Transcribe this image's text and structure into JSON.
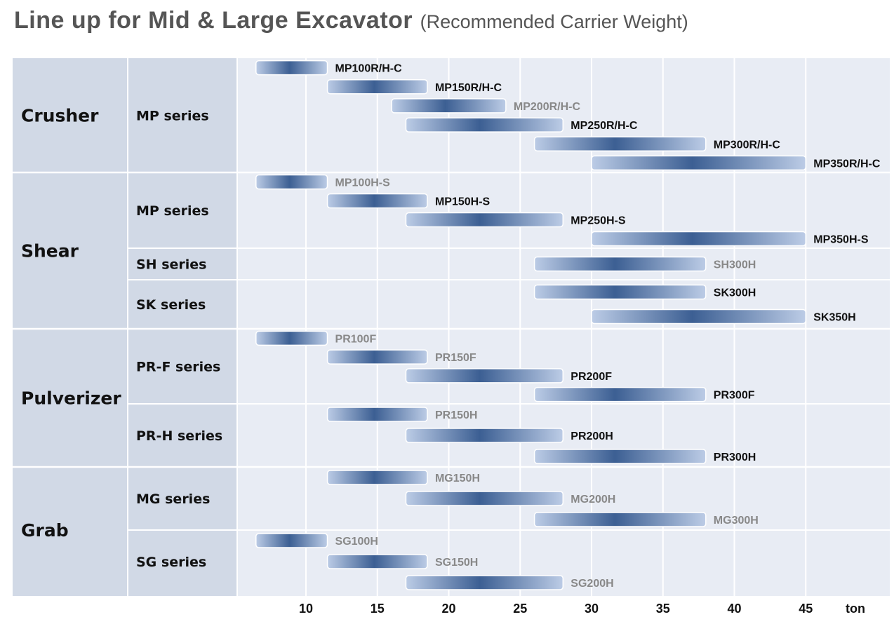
{
  "chart_data": {
    "type": "range-bar",
    "title": "Line up for Mid & Large Excavator",
    "subtitle": "(Recommended Carrier Weight)",
    "x_unit": "ton",
    "x_ticks": [
      10,
      15,
      20,
      25,
      30,
      35,
      40,
      45
    ],
    "xlim": [
      5,
      49.5
    ],
    "grid": true,
    "colors": {
      "bar_light": "#bccce6",
      "bar_dark": "#3c5f93",
      "panel": "#e8ecf4",
      "label_col": "#d1d9e6",
      "label_gray": "#888888",
      "label_black": "#111111"
    },
    "categories": [
      {
        "name": "Crusher",
        "series": [
          {
            "name": "MP series",
            "models": [
              {
                "name": "MP100R/H-C",
                "min": 6.5,
                "max": 11.5,
                "label_style": "black"
              },
              {
                "name": "MP150R/H-C",
                "min": 11.5,
                "max": 18.5,
                "label_style": "black"
              },
              {
                "name": "MP200R/H-C",
                "min": 16,
                "max": 24,
                "label_style": "gray"
              },
              {
                "name": "MP250R/H-C",
                "min": 17,
                "max": 28,
                "label_style": "black"
              },
              {
                "name": "MP300R/H-C",
                "min": 26,
                "max": 38,
                "label_style": "black"
              },
              {
                "name": "MP350R/H-C",
                "min": 30,
                "max": 45,
                "label_style": "black"
              }
            ]
          }
        ]
      },
      {
        "name": "Shear",
        "series": [
          {
            "name": "MP series",
            "models": [
              {
                "name": "MP100H-S",
                "min": 6.5,
                "max": 11.5,
                "label_style": "gray"
              },
              {
                "name": "MP150H-S",
                "min": 11.5,
                "max": 18.5,
                "label_style": "black"
              },
              {
                "name": "MP250H-S",
                "min": 17,
                "max": 28,
                "label_style": "black"
              },
              {
                "name": "MP350H-S",
                "min": 30,
                "max": 45,
                "label_style": "black"
              }
            ]
          },
          {
            "name": "SH series",
            "models": [
              {
                "name": "SH300H",
                "min": 26,
                "max": 38,
                "label_style": "gray"
              }
            ]
          },
          {
            "name": "SK series",
            "models": [
              {
                "name": "SK300H",
                "min": 26,
                "max": 38,
                "label_style": "black"
              },
              {
                "name": "SK350H",
                "min": 30,
                "max": 45,
                "label_style": "black"
              }
            ]
          }
        ]
      },
      {
        "name": "Pulverizer",
        "series": [
          {
            "name": "PR-F series",
            "models": [
              {
                "name": "PR100F",
                "min": 6.5,
                "max": 11.5,
                "label_style": "gray"
              },
              {
                "name": "PR150F",
                "min": 11.5,
                "max": 18.5,
                "label_style": "gray"
              },
              {
                "name": "PR200F",
                "min": 17,
                "max": 28,
                "label_style": "black"
              },
              {
                "name": "PR300F",
                "min": 26,
                "max": 38,
                "label_style": "black"
              }
            ]
          },
          {
            "name": "PR-H series",
            "models": [
              {
                "name": "PR150H",
                "min": 11.5,
                "max": 18.5,
                "label_style": "gray"
              },
              {
                "name": "PR200H",
                "min": 17,
                "max": 28,
                "label_style": "black"
              },
              {
                "name": "PR300H",
                "min": 26,
                "max": 38,
                "label_style": "black"
              }
            ]
          }
        ]
      },
      {
        "name": "Grab",
        "series": [
          {
            "name": "MG series",
            "models": [
              {
                "name": "MG150H",
                "min": 11.5,
                "max": 18.5,
                "label_style": "gray"
              },
              {
                "name": "MG200H",
                "min": 17,
                "max": 28,
                "label_style": "gray"
              },
              {
                "name": "MG300H",
                "min": 26,
                "max": 38,
                "label_style": "gray"
              }
            ]
          },
          {
            "name": "SG series",
            "models": [
              {
                "name": "SG100H",
                "min": 6.5,
                "max": 11.5,
                "label_style": "gray"
              },
              {
                "name": "SG150H",
                "min": 11.5,
                "max": 18.5,
                "label_style": "gray"
              },
              {
                "name": "SG200H",
                "min": 17,
                "max": 28,
                "label_style": "gray"
              }
            ]
          }
        ]
      }
    ]
  }
}
